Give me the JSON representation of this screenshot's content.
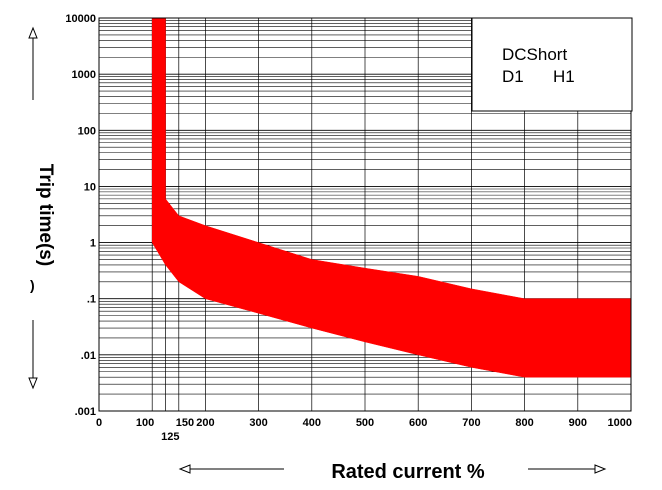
{
  "chart_data": {
    "type": "area",
    "title": "",
    "xlabel": "Rated current %",
    "ylabel": "Trip time(s)",
    "x_scale": "linear",
    "y_scale": "log",
    "xlim": [
      0,
      1000
    ],
    "ylim": [
      0.001,
      10000
    ],
    "x_ticks": [
      {
        "value": 0,
        "label": "0"
      },
      {
        "value": 100,
        "label": "100"
      },
      {
        "value": 125,
        "label": "125"
      },
      {
        "value": 150,
        "label": "150"
      },
      {
        "value": 200,
        "label": "200"
      },
      {
        "value": 300,
        "label": "300"
      },
      {
        "value": 400,
        "label": "400"
      },
      {
        "value": 500,
        "label": "500"
      },
      {
        "value": 600,
        "label": "600"
      },
      {
        "value": 700,
        "label": "700"
      },
      {
        "value": 800,
        "label": "800"
      },
      {
        "value": 900,
        "label": "900"
      },
      {
        "value": 1000,
        "label": "1000"
      }
    ],
    "y_ticks": [
      {
        "value": 0.001,
        "label": ".001"
      },
      {
        "value": 0.01,
        "label": ".01"
      },
      {
        "value": 0.1,
        "label": ".1"
      },
      {
        "value": 1,
        "label": "1"
      },
      {
        "value": 10,
        "label": "10"
      },
      {
        "value": 100,
        "label": "100"
      },
      {
        "value": 1000,
        "label": "1000"
      },
      {
        "value": 10000,
        "label": "10000"
      }
    ],
    "grid": true,
    "fill_color": "#ff0000",
    "band": {
      "upper": [
        {
          "x": 125,
          "y": 10000
        },
        {
          "x": 125,
          "y": 6
        },
        {
          "x": 150,
          "y": 3
        },
        {
          "x": 200,
          "y": 2
        },
        {
          "x": 300,
          "y": 1
        },
        {
          "x": 400,
          "y": 0.5
        },
        {
          "x": 500,
          "y": 0.35
        },
        {
          "x": 600,
          "y": 0.25
        },
        {
          "x": 700,
          "y": 0.15
        },
        {
          "x": 800,
          "y": 0.1
        },
        {
          "x": 1000,
          "y": 0.1
        }
      ],
      "lower": [
        {
          "x": 100,
          "y": 10000
        },
        {
          "x": 100,
          "y": 1
        },
        {
          "x": 125,
          "y": 0.4
        },
        {
          "x": 150,
          "y": 0.2
        },
        {
          "x": 200,
          "y": 0.1
        },
        {
          "x": 300,
          "y": 0.055
        },
        {
          "x": 400,
          "y": 0.03
        },
        {
          "x": 500,
          "y": 0.017
        },
        {
          "x": 600,
          "y": 0.01
        },
        {
          "x": 700,
          "y": 0.006
        },
        {
          "x": 800,
          "y": 0.004
        },
        {
          "x": 1000,
          "y": 0.004
        }
      ]
    },
    "legend": {
      "placement": "top-right",
      "line1": "DCShort",
      "line2_a": "D1",
      "line2_b": "H1"
    },
    "annotations": {
      "y_arrow_up": "up-arrow-icon",
      "y_arrow_down": "down-arrow-icon",
      "x_arrow_left": "left-arrow-icon",
      "x_arrow_right": "right-arrow-icon"
    }
  }
}
